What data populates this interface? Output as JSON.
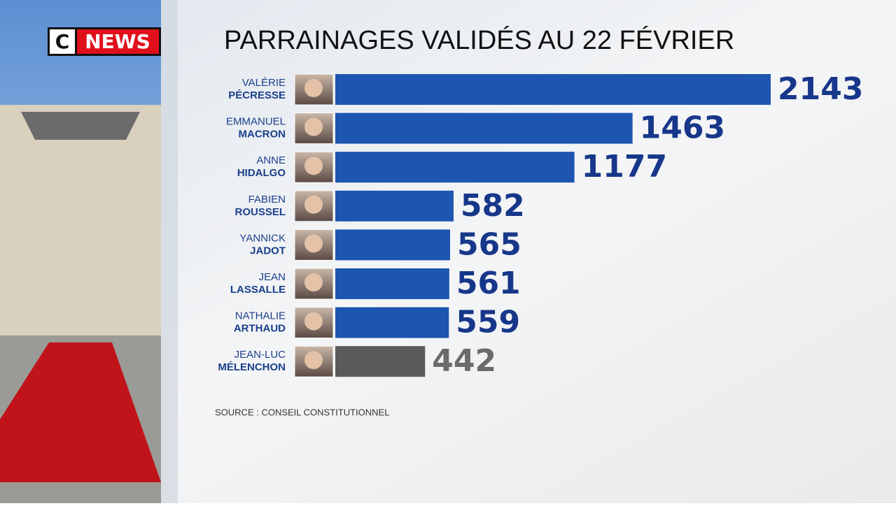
{
  "logo": {
    "c": "C",
    "news": "NEWS"
  },
  "chart_data": {
    "type": "bar",
    "orientation": "horizontal",
    "title": "PARRAINAGES VALIDÉS AU 22 FÉVRIER",
    "first_names": [
      "VALÉRIE",
      "EMMANUEL",
      "ANNE",
      "FABIEN",
      "YANNICK",
      "JEAN",
      "NATHALIE",
      "JEAN-LUC"
    ],
    "categories": [
      "PÉCRESSE",
      "MACRON",
      "HIDALGO",
      "ROUSSEL",
      "JADOT",
      "LASSALLE",
      "ARTHAUD",
      "MÉLENCHON"
    ],
    "values": [
      2143,
      1463,
      1177,
      582,
      565,
      561,
      559,
      442
    ],
    "colors": [
      "#1d55b0",
      "#1d55b0",
      "#1d55b0",
      "#1d55b0",
      "#1d55b0",
      "#1d55b0",
      "#1d55b0",
      "#5a5a5a"
    ],
    "label_colors": [
      "#17378a",
      "#17378a",
      "#17378a",
      "#17378a",
      "#17378a",
      "#17378a",
      "#17378a",
      "#6b6b6b"
    ],
    "source": "SOURCE : CONSEIL CONSTITUTIONNEL"
  }
}
